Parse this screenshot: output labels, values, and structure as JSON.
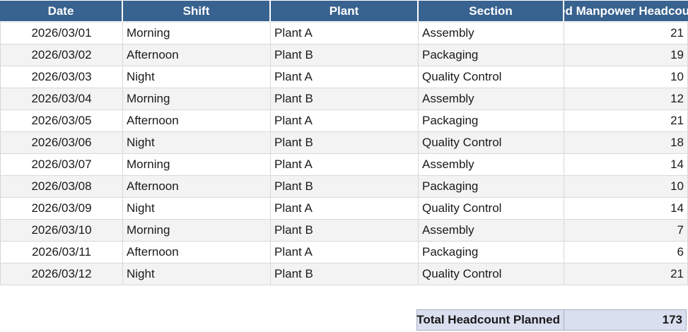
{
  "header": {
    "columns": [
      "Date",
      "Shift",
      "Plant",
      "Section",
      "Planned Manpower Headcount"
    ]
  },
  "rows": [
    {
      "date": "2026/03/01",
      "shift": "Morning",
      "plant": "Plant A",
      "section": "Assembly",
      "headcount": "21"
    },
    {
      "date": "2026/03/02",
      "shift": "Afternoon",
      "plant": "Plant B",
      "section": "Packaging",
      "headcount": "19"
    },
    {
      "date": "2026/03/03",
      "shift": "Night",
      "plant": "Plant A",
      "section": "Quality Control",
      "headcount": "10"
    },
    {
      "date": "2026/03/04",
      "shift": "Morning",
      "plant": "Plant B",
      "section": "Assembly",
      "headcount": "12"
    },
    {
      "date": "2026/03/05",
      "shift": "Afternoon",
      "plant": "Plant A",
      "section": "Packaging",
      "headcount": "21"
    },
    {
      "date": "2026/03/06",
      "shift": "Night",
      "plant": "Plant B",
      "section": "Quality Control",
      "headcount": "18"
    },
    {
      "date": "2026/03/07",
      "shift": "Morning",
      "plant": "Plant A",
      "section": "Assembly",
      "headcount": "14"
    },
    {
      "date": "2026/03/08",
      "shift": "Afternoon",
      "plant": "Plant B",
      "section": "Packaging",
      "headcount": "10"
    },
    {
      "date": "2026/03/09",
      "shift": "Night",
      "plant": "Plant A",
      "section": "Quality Control",
      "headcount": "14"
    },
    {
      "date": "2026/03/10",
      "shift": "Morning",
      "plant": "Plant B",
      "section": "Assembly",
      "headcount": "7"
    },
    {
      "date": "2026/03/11",
      "shift": "Afternoon",
      "plant": "Plant A",
      "section": "Packaging",
      "headcount": "6"
    },
    {
      "date": "2026/03/12",
      "shift": "Night",
      "plant": "Plant B",
      "section": "Quality Control",
      "headcount": "21"
    }
  ],
  "summary": {
    "total_label": "Total Headcount Planned",
    "total_value": "173"
  },
  "colors": {
    "header_bg": "#38628F",
    "header_text": "#FFFFFF",
    "row_stripe": "#F3F3F3",
    "grid_line": "#D9D9D9",
    "total_bg": "#D9DFEF",
    "total_border": "#A9AFC2"
  }
}
